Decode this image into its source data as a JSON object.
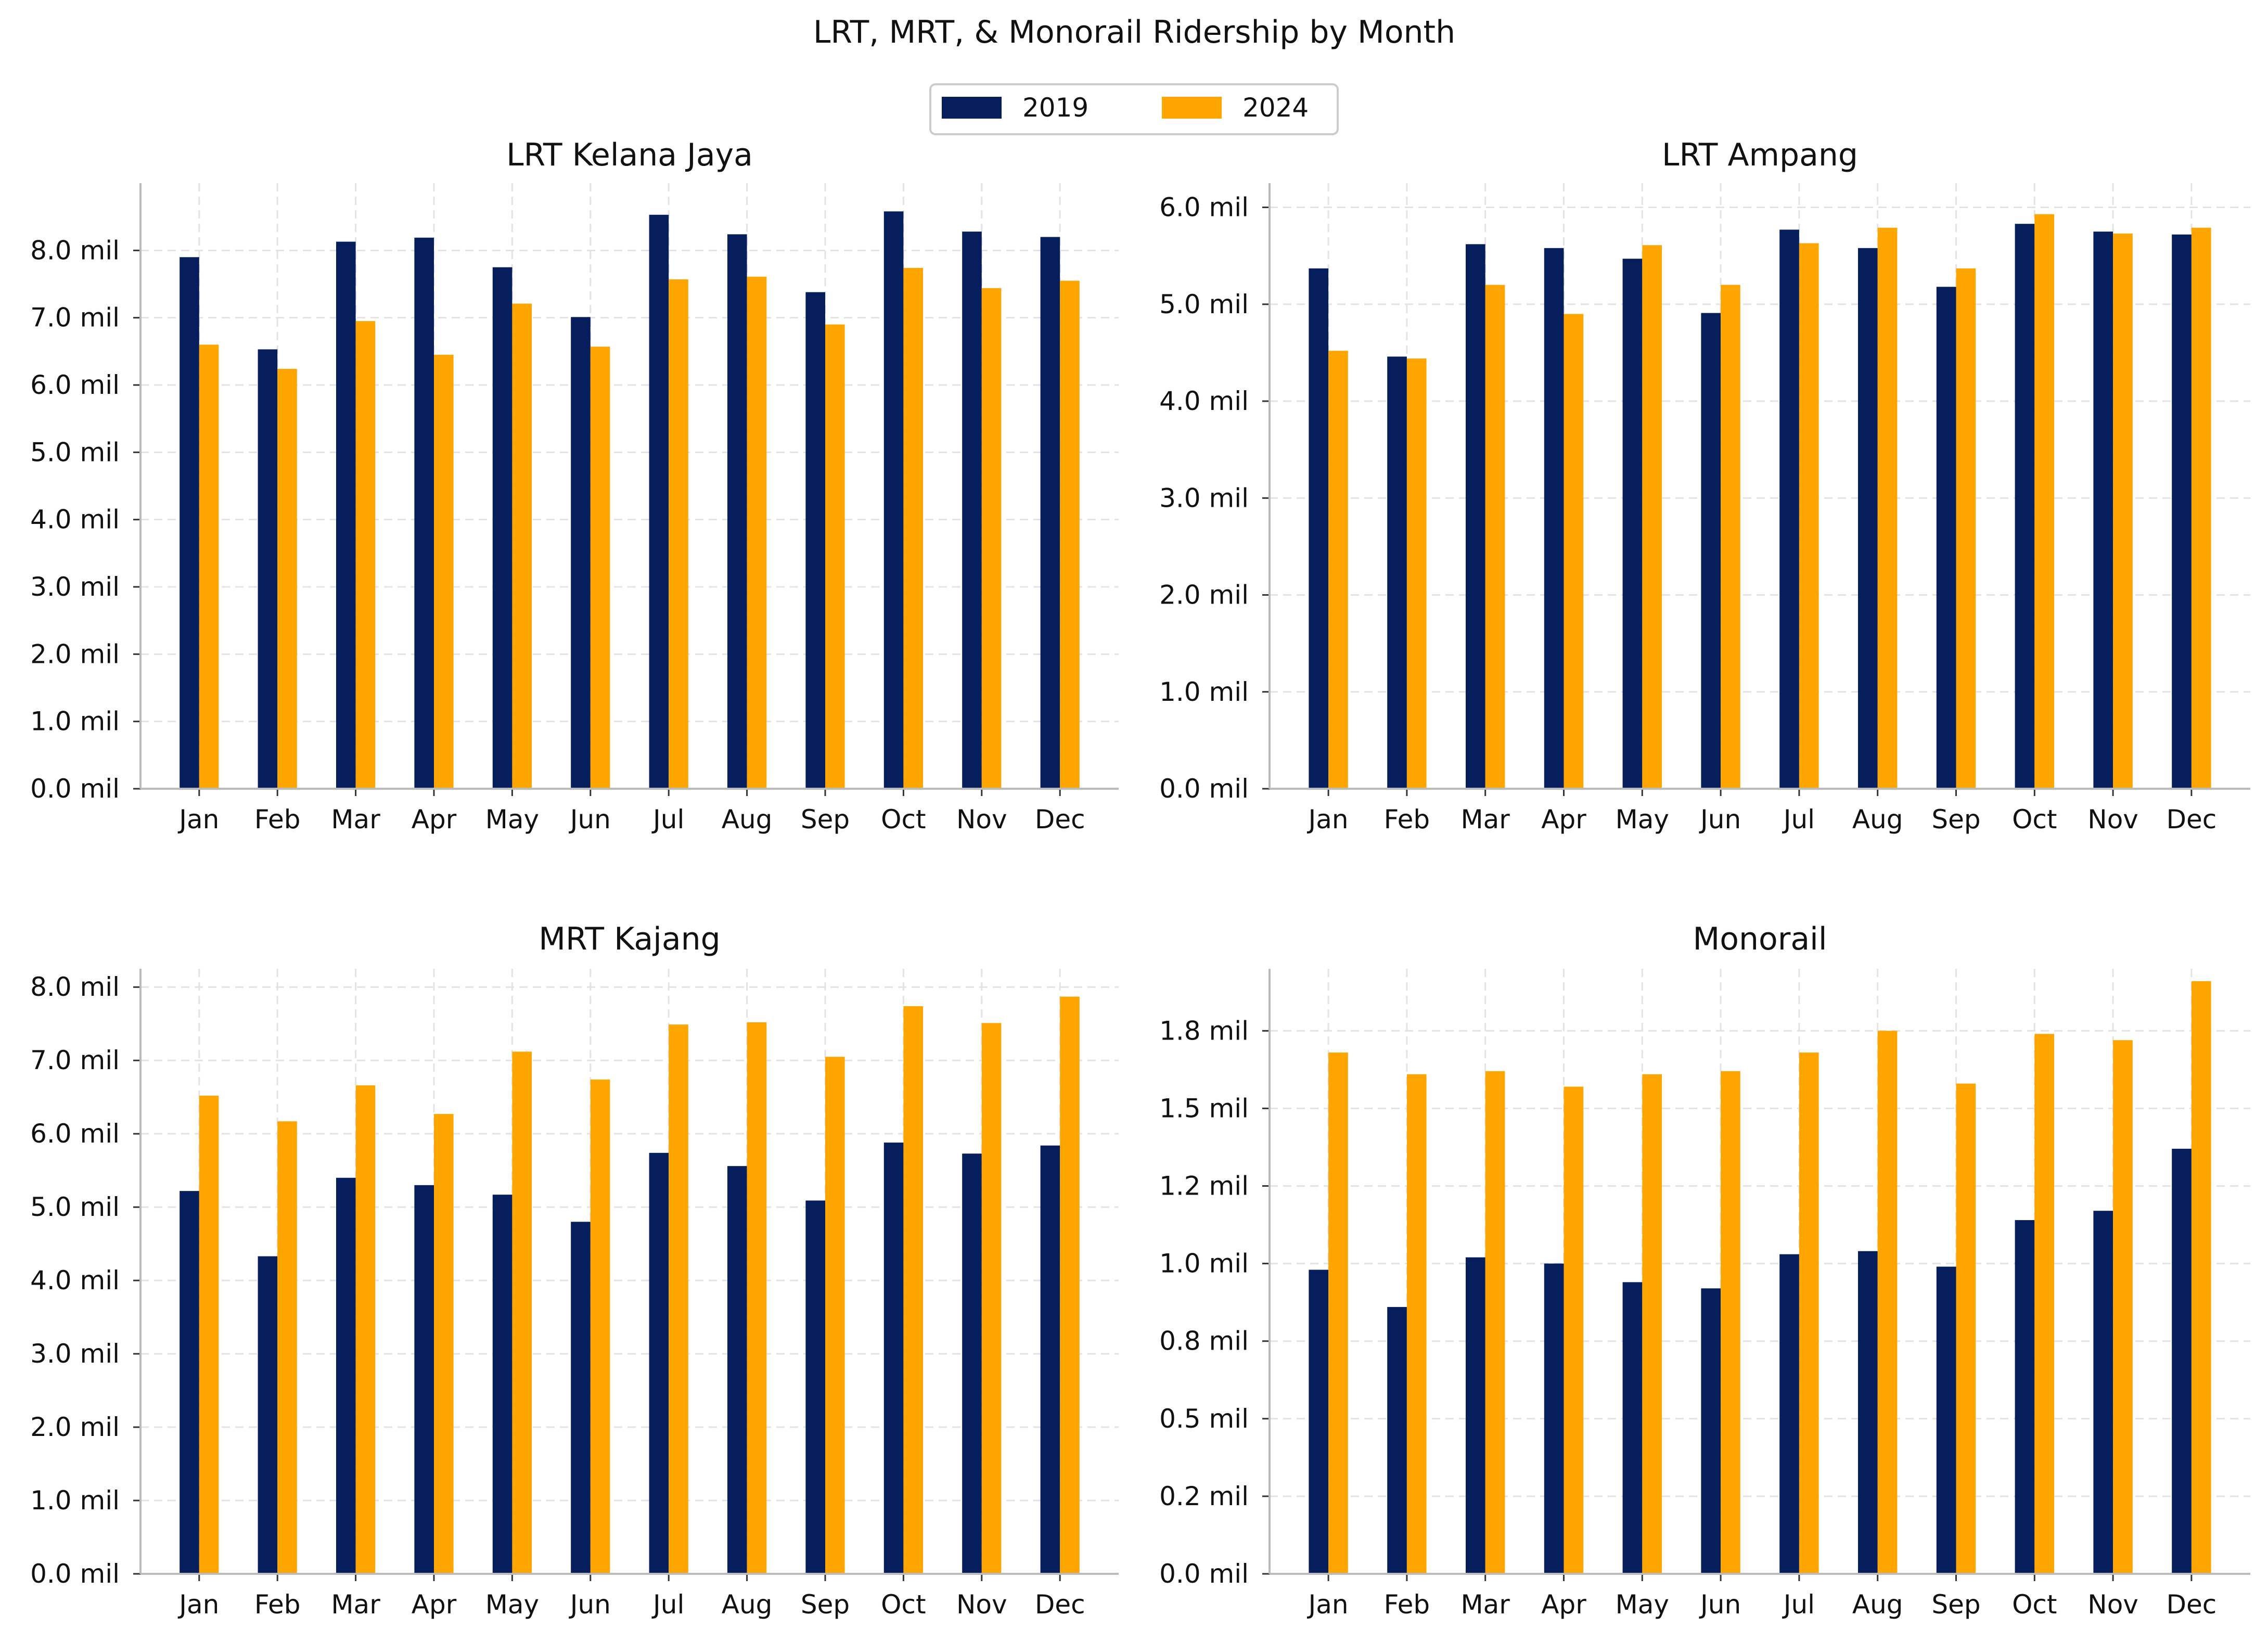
{
  "title": "LRT, MRT, & Monorail Ridership by Month",
  "legend": {
    "placement": "top-center",
    "entries": [
      {
        "label": "2019",
        "color": "#061f5c"
      },
      {
        "label": "2024",
        "color": "#ffa500"
      }
    ]
  },
  "chart_data": [
    {
      "type": "bar",
      "title": "LRT Kelana Jaya",
      "categories": [
        "Jan",
        "Feb",
        "Mar",
        "Apr",
        "May",
        "Jun",
        "Jul",
        "Aug",
        "Sep",
        "Oct",
        "Nov",
        "Dec"
      ],
      "series": [
        {
          "name": "2019",
          "values": [
            7.9,
            6.53,
            8.13,
            8.19,
            7.75,
            7.01,
            8.53,
            8.24,
            7.38,
            8.58,
            8.28,
            8.2
          ]
        },
        {
          "name": "2024",
          "values": [
            6.6,
            6.24,
            6.95,
            6.45,
            7.21,
            6.57,
            7.57,
            7.61,
            6.9,
            7.74,
            7.44,
            7.55
          ]
        }
      ],
      "ylim": [
        0,
        9.0
      ],
      "yticks": [
        0,
        1,
        2,
        3,
        4,
        5,
        6,
        7,
        8
      ],
      "ytick_labels": [
        "0.0 mil",
        "1.0 mil",
        "2.0 mil",
        "3.0 mil",
        "4.0 mil",
        "5.0 mil",
        "6.0 mil",
        "7.0 mil",
        "8.0 mil"
      ],
      "grid": true
    },
    {
      "type": "bar",
      "title": "LRT Ampang",
      "categories": [
        "Jan",
        "Feb",
        "Mar",
        "Apr",
        "May",
        "Jun",
        "Jul",
        "Aug",
        "Sep",
        "Oct",
        "Nov",
        "Dec"
      ],
      "series": [
        {
          "name": "2019",
          "values": [
            5.37,
            4.46,
            5.62,
            5.58,
            5.47,
            4.91,
            5.77,
            5.58,
            5.18,
            5.83,
            5.75,
            5.72
          ]
        },
        {
          "name": "2024",
          "values": [
            4.52,
            4.44,
            5.2,
            4.9,
            5.61,
            5.2,
            5.63,
            5.79,
            5.37,
            5.93,
            5.73,
            5.79
          ]
        }
      ],
      "ylim": [
        0,
        6.25
      ],
      "yticks": [
        0,
        1,
        2,
        3,
        4,
        5,
        6
      ],
      "ytick_labels": [
        "0.0 mil",
        "1.0 mil",
        "2.0 mil",
        "3.0 mil",
        "4.0 mil",
        "5.0 mil",
        "6.0 mil"
      ],
      "grid": true
    },
    {
      "type": "bar",
      "title": "MRT Kajang",
      "categories": [
        "Jan",
        "Feb",
        "Mar",
        "Apr",
        "May",
        "Jun",
        "Jul",
        "Aug",
        "Sep",
        "Oct",
        "Nov",
        "Dec"
      ],
      "series": [
        {
          "name": "2019",
          "values": [
            5.22,
            4.33,
            5.4,
            5.3,
            5.17,
            4.8,
            5.74,
            5.56,
            5.09,
            5.88,
            5.73,
            5.84
          ]
        },
        {
          "name": "2024",
          "values": [
            6.52,
            6.17,
            6.66,
            6.27,
            7.12,
            6.74,
            7.49,
            7.52,
            7.05,
            7.74,
            7.51,
            7.87
          ]
        }
      ],
      "ylim": [
        0,
        8.25
      ],
      "yticks": [
        0,
        1,
        2,
        3,
        4,
        5,
        6,
        7,
        8
      ],
      "ytick_labels": [
        "0.0 mil",
        "1.0 mil",
        "2.0 mil",
        "3.0 mil",
        "4.0 mil",
        "5.0 mil",
        "6.0 mil",
        "7.0 mil",
        "8.0 mil"
      ],
      "grid": true
    },
    {
      "type": "bar",
      "title": "Monorail",
      "categories": [
        "Jan",
        "Feb",
        "Mar",
        "Apr",
        "May",
        "Jun",
        "Jul",
        "Aug",
        "Sep",
        "Oct",
        "Nov",
        "Dec"
      ],
      "series": [
        {
          "name": "2019",
          "values": [
            0.98,
            0.86,
            1.02,
            1.0,
            0.94,
            0.92,
            1.03,
            1.04,
            0.99,
            1.14,
            1.17,
            1.37
          ]
        },
        {
          "name": "2024",
          "values": [
            1.68,
            1.61,
            1.62,
            1.57,
            1.61,
            1.62,
            1.68,
            1.75,
            1.58,
            1.74,
            1.72,
            1.91
          ]
        }
      ],
      "ylim": [
        0,
        1.95
      ],
      "yticks": [
        0,
        0.25,
        0.5,
        0.75,
        1.0,
        1.25,
        1.5,
        1.75
      ],
      "ytick_labels": [
        "0.0 mil",
        "0.2 mil",
        "0.5 mil",
        "0.8 mil",
        "1.0 mil",
        "1.2 mil",
        "1.5 mil",
        "1.8 mil"
      ],
      "grid": true
    }
  ]
}
